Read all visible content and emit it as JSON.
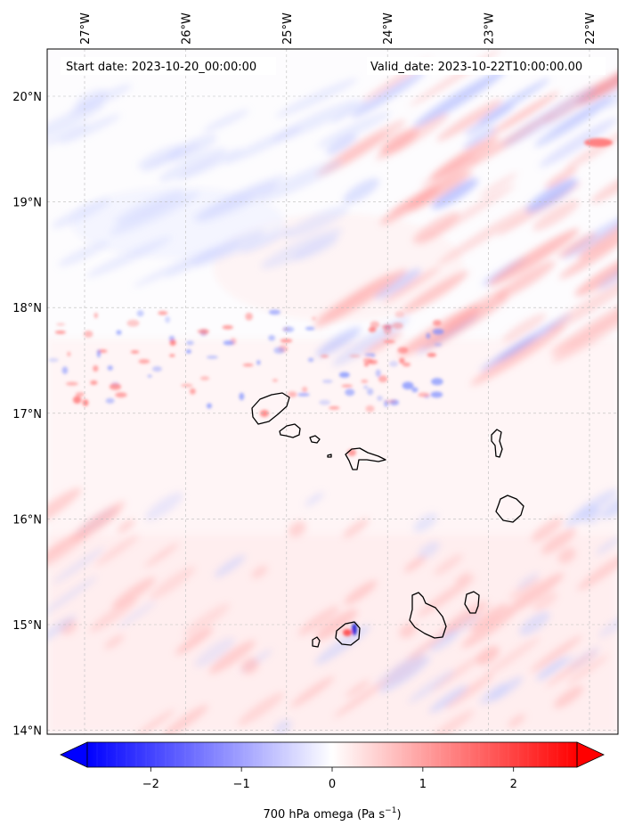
{
  "header": {
    "start_label": "Start date: 2023-10-20_00:00:00",
    "valid_label": "Valid_date: 2023-10-22T10:00:00.00"
  },
  "map": {
    "lon_range": [
      -27.4,
      -21.8
    ],
    "lat_range": [
      13.95,
      20.4
    ],
    "lon_ticks": [
      {
        "value": -27,
        "label": "27°W"
      },
      {
        "value": -26,
        "label": "26°W"
      },
      {
        "value": -25,
        "label": "25°W"
      },
      {
        "value": -24,
        "label": "24°W"
      },
      {
        "value": -23,
        "label": "23°W"
      },
      {
        "value": -22,
        "label": "22°W"
      }
    ],
    "lat_ticks": [
      {
        "value": 20,
        "label": "20°N"
      },
      {
        "value": 19,
        "label": "19°N"
      },
      {
        "value": 18,
        "label": "18°N"
      },
      {
        "value": 17,
        "label": "17°N"
      },
      {
        "value": 16,
        "label": "16°N"
      },
      {
        "value": 15,
        "label": "15°N"
      },
      {
        "value": 14,
        "label": "14°N"
      }
    ],
    "gridlines": true,
    "colormap": "bwr",
    "colors": {
      "negative": "#0000ff",
      "zero": "#ffffff",
      "positive": "#ff0000",
      "coast": "#000000",
      "grid": "#bbbbbb"
    }
  },
  "colorbar": {
    "min": -2.7,
    "max": 2.7,
    "ticks": [
      {
        "value": -2,
        "label": "−2"
      },
      {
        "value": -1,
        "label": "−1"
      },
      {
        "value": 0,
        "label": "0"
      },
      {
        "value": 1,
        "label": "1"
      },
      {
        "value": 2,
        "label": "2"
      }
    ],
    "extend": "both",
    "label_text": "700 hPa omega (Pa s",
    "label_sup": "−1",
    "label_close": ")"
  }
}
